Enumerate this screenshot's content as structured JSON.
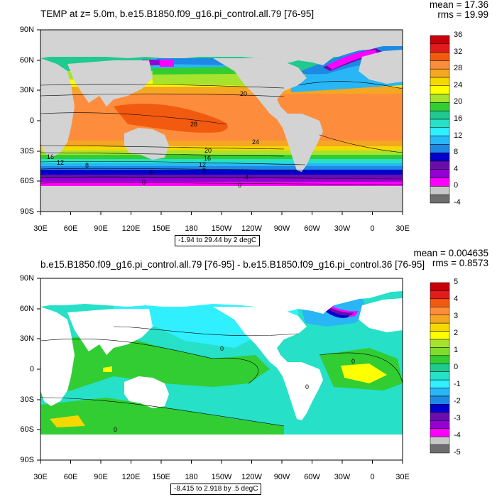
{
  "panels": [
    {
      "title": "TEMP at z=   5.0m, b.e15.B1850.f09_g16.pi_control.all.79 [76-95]",
      "stats": {
        "mean": "mean = 17.36",
        "rms": "rms = 19.99"
      },
      "lat_ticks": [
        "90N",
        "60N",
        "30N",
        "0",
        "30S",
        "60S",
        "90S"
      ],
      "lon_ticks": [
        "30E",
        "60E",
        "90E",
        "120E",
        "150E",
        "180",
        "150W",
        "120W",
        "90W",
        "60W",
        "30W",
        "0",
        "30E"
      ],
      "range_label": "-1.94 to 29.44 by 2 degC",
      "contour_labels": [
        "20",
        "28",
        "24",
        "20",
        "16",
        "12",
        "16",
        "12",
        "8",
        "8",
        "8",
        "4",
        "0",
        "0"
      ],
      "colorbar": {
        "labels": [
          "36",
          "32",
          "28",
          "24",
          "20",
          "16",
          "12",
          "8",
          "4",
          "0",
          "-4"
        ],
        "colors": [
          "#c8000a",
          "#e31a1c",
          "#f25a10",
          "#fd8d3c",
          "#f5a623",
          "#f5d800",
          "#ffff00",
          "#a6e22e",
          "#32cd32",
          "#1fc98f",
          "#26e0c8",
          "#30f0ff",
          "#29b6f6",
          "#1e88e5",
          "#0000cd",
          "#6a0dad",
          "#9400d3",
          "#ff00ff",
          "#c8c8c8",
          "#6e6e6e"
        ]
      },
      "colors": {
        "land": "#d3d3d3"
      }
    },
    {
      "title": "b.e15.B1850.f09_g16.pi_control.all.79 [76-95] - b.e15.B1850.f09_g16.pi_control.36 [76-95]",
      "stats": {
        "mean": "mean = 0.004635",
        "rms": "rms = 0.8573"
      },
      "lat_ticks": [
        "90N",
        "60N",
        "30N",
        "0",
        "30S",
        "60S",
        "90S"
      ],
      "lon_ticks": [
        "30E",
        "60E",
        "90E",
        "120E",
        "150E",
        "180",
        "150W",
        "120W",
        "90W",
        "60W",
        "30W",
        "0",
        "30E"
      ],
      "range_label": "-8.415 to 2.918 by .5 degC",
      "contour_labels": [
        "0",
        "0",
        "0",
        "0"
      ],
      "colorbar": {
        "labels": [
          "5",
          "4",
          "3",
          "2",
          "1",
          "0",
          "-1",
          "-2",
          "-3",
          "-4",
          "-5"
        ],
        "colors": [
          "#c8000a",
          "#e31a1c",
          "#f25a10",
          "#fd8d3c",
          "#f5a623",
          "#f5d800",
          "#ffff00",
          "#a6e22e",
          "#7fdc2a",
          "#32cd32",
          "#1fc98f",
          "#26e0c8",
          "#30f0ff",
          "#29b6f6",
          "#1e88e5",
          "#0000cd",
          "#6a0dad",
          "#9400d3",
          "#ff00ff",
          "#c8c8c8",
          "#6e6e6e"
        ]
      },
      "colors": {
        "land": "#ffffff"
      }
    }
  ]
}
